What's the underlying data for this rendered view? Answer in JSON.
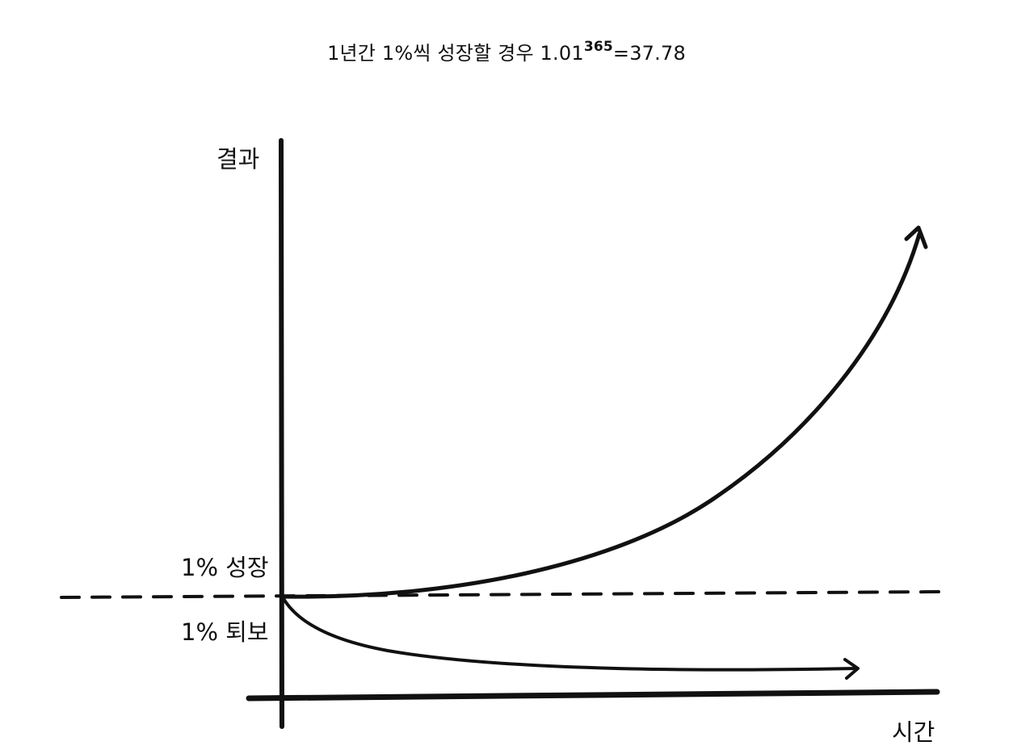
{
  "title": {
    "prefix": "1년간 1%씩 성장할 경우 1.01",
    "exponent": "365",
    "suffix": "=37.78"
  },
  "axes": {
    "y_label": "결과",
    "x_label": "시간"
  },
  "curves": {
    "growth_label": "1% 성장",
    "decline_label": "1% 퇴보"
  },
  "colors": {
    "ink": "#111111",
    "background": "#ffffff"
  }
}
